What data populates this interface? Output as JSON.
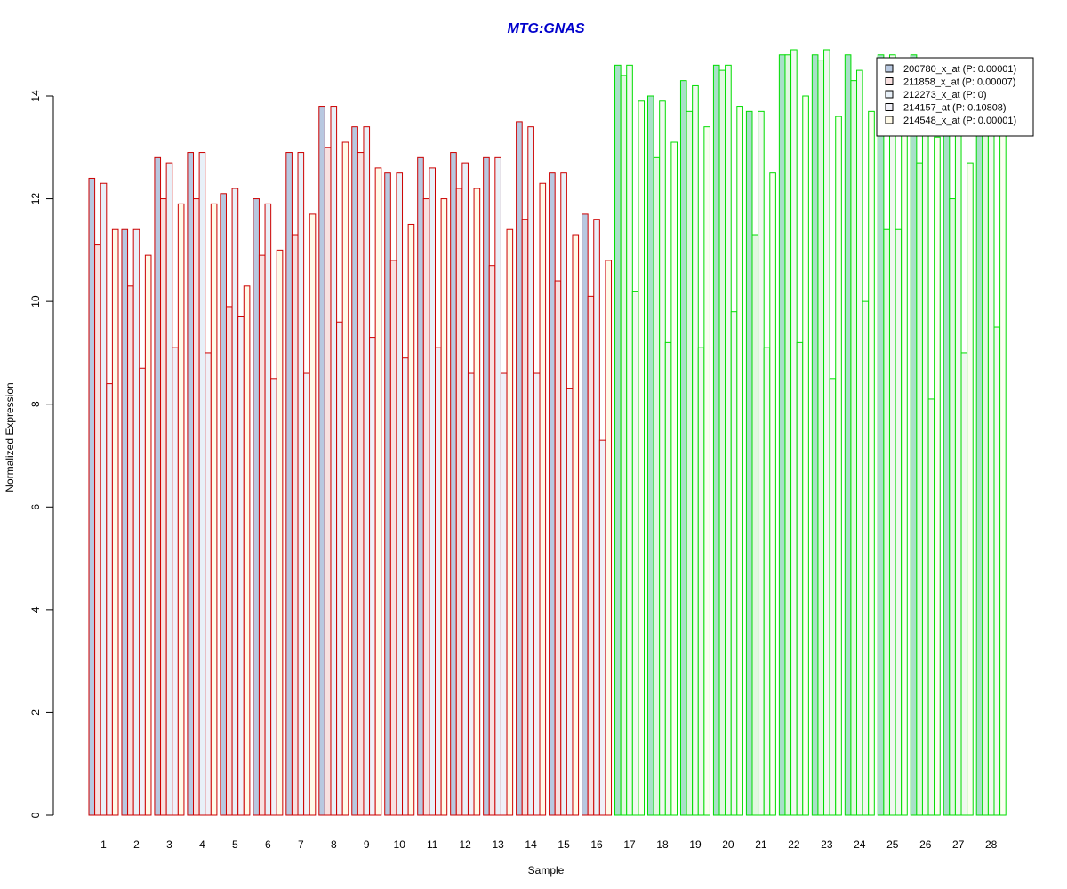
{
  "chart_data": {
    "type": "bar",
    "title": "MTG:GNAS",
    "xlabel": "Sample",
    "ylabel": "Normalized Expression",
    "ylim": [
      0,
      14.9
    ],
    "yticks": [
      0,
      2,
      4,
      6,
      8,
      10,
      12,
      14
    ],
    "categories": [
      "1",
      "2",
      "3",
      "4",
      "5",
      "6",
      "7",
      "8",
      "9",
      "10",
      "11",
      "12",
      "13",
      "14",
      "15",
      "16",
      "17",
      "18",
      "19",
      "20",
      "21",
      "22",
      "23",
      "24",
      "25",
      "26",
      "27",
      "28"
    ],
    "group_border_colors": [
      "red",
      "red",
      "red",
      "red",
      "red",
      "red",
      "red",
      "red",
      "red",
      "red",
      "red",
      "red",
      "red",
      "red",
      "red",
      "red",
      "lime",
      "lime",
      "lime",
      "lime",
      "lime",
      "lime",
      "lime",
      "lime",
      "lime",
      "lime",
      "lime",
      "lime"
    ],
    "colors": {
      "group_a_border": "#cc0000",
      "group_b_border": "#00dd00",
      "title": "#0000cc"
    },
    "legend_position": "top-right",
    "series": [
      {
        "name": "200780_x_at (P: 0.00001)",
        "fill": "#b8c8e0",
        "fill_b": "#a8e0c8",
        "values": [
          12.4,
          11.4,
          12.8,
          12.9,
          12.1,
          12.0,
          12.9,
          13.8,
          13.4,
          12.5,
          12.8,
          12.9,
          12.8,
          13.5,
          12.5,
          11.7,
          14.6,
          14.0,
          14.3,
          14.6,
          13.7,
          14.8,
          14.8,
          14.8,
          14.8,
          14.8,
          14.3,
          14.6
        ]
      },
      {
        "name": "211858_x_at (P: 0.00007)",
        "fill": "#f8e0e0",
        "fill_b": "#e0f8e0",
        "values": [
          11.1,
          10.3,
          12.0,
          12.0,
          9.9,
          10.9,
          11.3,
          13.0,
          12.9,
          10.8,
          12.0,
          12.2,
          10.7,
          11.6,
          10.4,
          10.1,
          14.4,
          12.8,
          13.7,
          14.5,
          11.3,
          14.8,
          14.7,
          14.3,
          11.4,
          12.7,
          12.0,
          14.0
        ]
      },
      {
        "name": "212273_x_at (P: 0)",
        "fill": "#e8f0f8",
        "fill_b": "#f0f8f0",
        "values": [
          12.3,
          11.4,
          12.7,
          12.9,
          12.2,
          11.9,
          12.9,
          13.8,
          13.4,
          12.5,
          12.6,
          12.7,
          12.8,
          13.4,
          12.5,
          11.6,
          14.6,
          13.9,
          14.2,
          14.6,
          13.7,
          14.9,
          14.9,
          14.5,
          14.8,
          14.7,
          14.5,
          14.7
        ]
      },
      {
        "name": "214157_at (P: 0.10808)",
        "fill": "#f0f0f8",
        "fill_b": "#f0f8f0",
        "values": [
          8.4,
          8.7,
          9.1,
          9.0,
          9.7,
          8.5,
          8.6,
          9.6,
          9.3,
          8.9,
          9.1,
          8.6,
          8.6,
          8.6,
          8.3,
          7.3,
          10.2,
          9.2,
          9.1,
          9.8,
          9.1,
          9.2,
          8.5,
          10.0,
          11.4,
          8.1,
          9.0,
          9.5
        ]
      },
      {
        "name": "214548_x_at (P: 0.00001)",
        "fill": "#fffae8",
        "fill_b": "#fafff0",
        "values": [
          11.4,
          10.9,
          11.9,
          11.9,
          10.3,
          11.0,
          11.7,
          13.1,
          12.6,
          11.5,
          12.0,
          12.2,
          11.4,
          12.3,
          11.3,
          10.8,
          13.9,
          13.1,
          13.4,
          13.8,
          12.5,
          14.0,
          13.6,
          13.7,
          13.5,
          13.2,
          12.7,
          13.7
        ]
      }
    ]
  }
}
